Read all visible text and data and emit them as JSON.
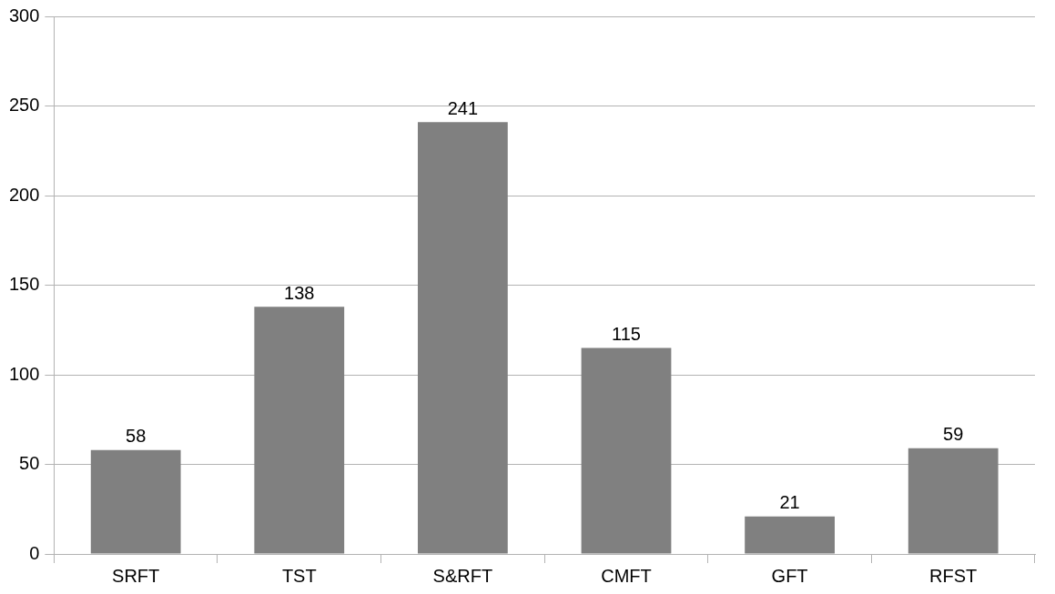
{
  "chart_data": {
    "type": "bar",
    "categories": [
      "SRFT",
      "TST",
      "S&RFT",
      "CMFT",
      "GFT",
      "RFST"
    ],
    "values": [
      58,
      138,
      241,
      115,
      21,
      59
    ],
    "color": "#808080",
    "ylim": [
      0,
      300
    ],
    "yticks": [
      0,
      50,
      100,
      150,
      200,
      250,
      300
    ],
    "grid": "y",
    "data_labels": true,
    "legend": false
  }
}
